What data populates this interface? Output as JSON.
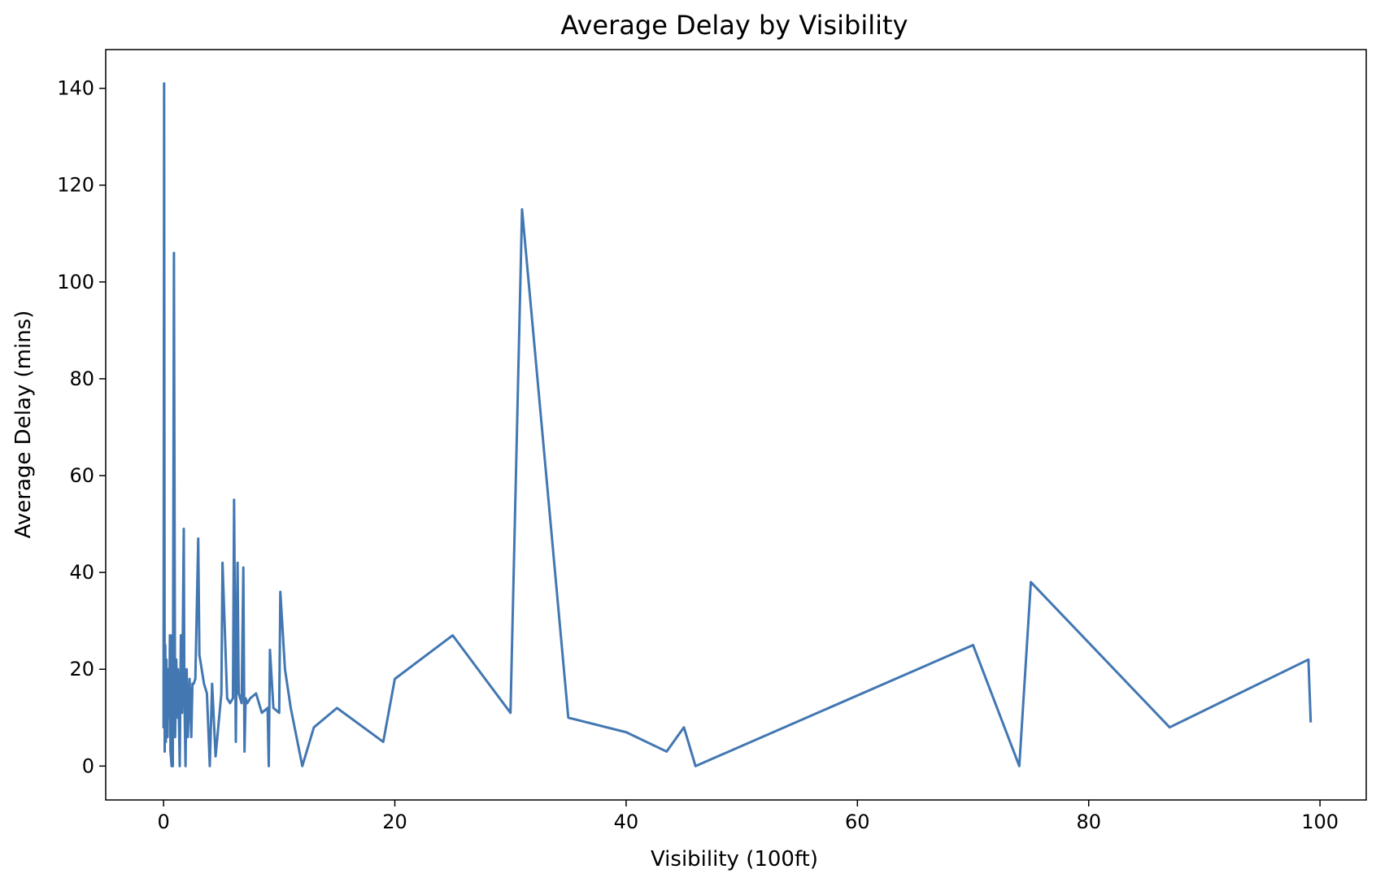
{
  "chart_data": {
    "type": "line",
    "title": "Average Delay by Visibility",
    "xlabel": "Visibility (100ft)",
    "ylabel": "Average Delay (mins)",
    "xlim": [
      -5,
      104
    ],
    "ylim": [
      -7,
      148
    ],
    "xticks": [
      0,
      20,
      40,
      60,
      80,
      100
    ],
    "yticks": [
      0,
      20,
      40,
      60,
      80,
      100,
      120,
      140
    ],
    "grid": false,
    "series_color": "#4277b2",
    "x": [
      0,
      0,
      0.05,
      0.1,
      0.15,
      0.2,
      0.25,
      0.3,
      0.35,
      0.4,
      0.5,
      0.55,
      0.6,
      0.7,
      0.75,
      0.8,
      0.9,
      1.0,
      1.1,
      1.2,
      1.25,
      1.3,
      1.4,
      1.5,
      1.6,
      1.75,
      1.8,
      1.9,
      2.0,
      2.1,
      2.25,
      2.4,
      2.5,
      2.6,
      2.75,
      3.0,
      3.1,
      3.5,
      3.75,
      4.0,
      4.2,
      4.5,
      5.0,
      5.1,
      5.5,
      5.75,
      6.0,
      6.1,
      6.25,
      6.4,
      6.5,
      6.75,
      6.9,
      7.0,
      7.1,
      7.25,
      7.5,
      8.0,
      8.5,
      9.0,
      9.1,
      9.2,
      9.5,
      10.0,
      10.1,
      10.5,
      11.0,
      12.0,
      13.0,
      15.0,
      19.0,
      20.0,
      25.0,
      30.0,
      31.0,
      35.0,
      40.0,
      43.5,
      45.0,
      46.0,
      70.0,
      74.0,
      75.0,
      87.0,
      99.0,
      99.2
    ],
    "y": [
      18,
      8,
      141,
      3,
      25,
      5,
      22,
      12,
      6,
      20,
      10,
      27,
      3,
      0,
      27,
      0,
      106,
      6,
      22,
      10,
      20,
      14,
      0,
      27,
      11,
      49,
      15,
      0,
      20,
      6,
      18,
      6,
      17,
      17,
      18,
      47,
      23,
      17,
      15,
      0,
      17,
      2,
      15,
      42,
      14,
      13,
      14,
      55,
      5,
      42,
      15,
      13,
      41,
      3,
      14,
      13,
      14,
      15,
      11,
      12,
      0,
      24,
      12,
      11,
      36,
      20,
      12,
      0,
      8,
      12,
      5,
      18,
      27,
      11,
      115,
      10,
      7,
      3,
      8,
      0,
      25,
      0,
      38,
      8,
      22,
      9
    ]
  }
}
